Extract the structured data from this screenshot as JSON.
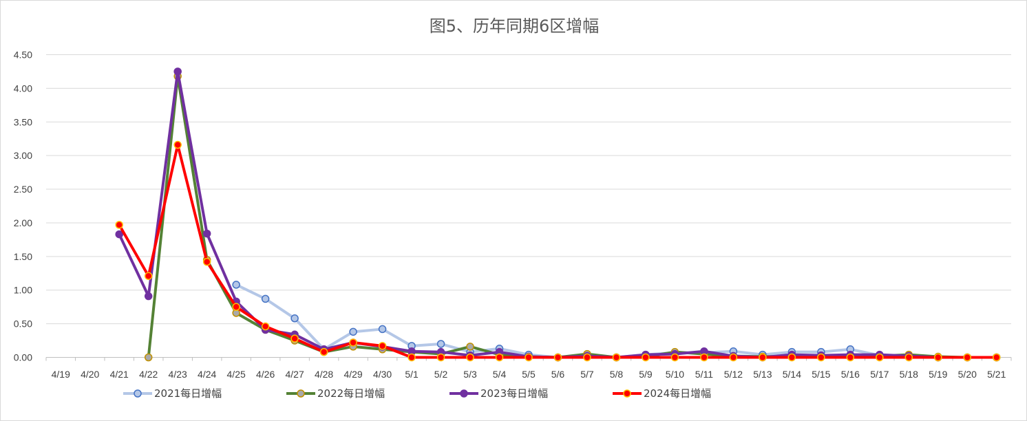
{
  "chart_data": {
    "type": "line",
    "title": "图5、历年同期6区增幅",
    "xlabel": "",
    "ylabel": "",
    "ylim": [
      0,
      4.5
    ],
    "yticks": [
      "0.00",
      "0.50",
      "1.00",
      "1.50",
      "2.00",
      "2.50",
      "3.00",
      "3.50",
      "4.00",
      "4.50"
    ],
    "grid": true,
    "legend_position": "bottom",
    "categories": [
      "4/19",
      "4/20",
      "4/21",
      "4/22",
      "4/23",
      "4/24",
      "4/25",
      "4/26",
      "4/27",
      "4/28",
      "4/29",
      "4/30",
      "5/1",
      "5/2",
      "5/3",
      "5/4",
      "5/5",
      "5/6",
      "5/7",
      "5/8",
      "5/9",
      "5/10",
      "5/11",
      "5/12",
      "5/13",
      "5/14",
      "5/15",
      "5/16",
      "5/17",
      "5/18",
      "5/19",
      "5/20",
      "5/21"
    ],
    "series": [
      {
        "name": "2021每日增幅",
        "color": "#b4c7e7",
        "marker_fill": "#b4c7e7",
        "marker_stroke": "#4472c4",
        "line_width": 4,
        "values": [
          null,
          null,
          null,
          null,
          null,
          null,
          1.08,
          0.87,
          0.58,
          0.12,
          0.38,
          0.42,
          0.17,
          0.2,
          0.08,
          0.13,
          0.04,
          0.0,
          0.04,
          0.0,
          0.04,
          0.07,
          0.07,
          0.09,
          0.04,
          0.08,
          0.08,
          0.12,
          0.03,
          0.02,
          0.0,
          0.0,
          0.0
        ]
      },
      {
        "name": "2022每日增幅",
        "color": "#548235",
        "marker_fill": "#a9a9a9",
        "marker_stroke": "#c09000",
        "line_width": 4,
        "values": [
          null,
          null,
          null,
          0.0,
          4.18,
          1.45,
          0.66,
          0.41,
          0.25,
          0.08,
          0.16,
          0.12,
          0.08,
          0.05,
          0.16,
          0.04,
          0.01,
          0.0,
          0.05,
          0.0,
          0.01,
          0.08,
          0.05,
          0.02,
          0.01,
          0.02,
          0.01,
          0.01,
          0.02,
          0.04,
          0.01,
          0.0,
          0.0
        ]
      },
      {
        "name": "2023每日增幅",
        "color": "#7030a0",
        "marker_fill": "#7030a0",
        "marker_stroke": "#7030a0",
        "line_width": 4,
        "values": [
          null,
          null,
          1.83,
          0.91,
          4.25,
          1.84,
          0.83,
          0.41,
          0.34,
          0.12,
          0.22,
          0.16,
          0.09,
          0.08,
          0.03,
          0.08,
          0.01,
          0.0,
          0.02,
          0.0,
          0.04,
          0.05,
          0.09,
          0.02,
          0.0,
          0.04,
          0.03,
          0.04,
          0.04,
          0.02,
          0.0,
          0.0,
          0.0
        ]
      },
      {
        "name": "2024每日增幅",
        "color": "#ff0000",
        "marker_fill": "#ff0000",
        "marker_stroke": "#ffc000",
        "line_width": 4,
        "values": [
          null,
          null,
          1.97,
          1.21,
          3.16,
          1.42,
          0.75,
          0.46,
          0.28,
          0.08,
          0.22,
          0.17,
          0.0,
          0.0,
          0.0,
          0.0,
          0.0,
          0.0,
          0.0,
          0.0,
          0.0,
          0.0,
          0.0,
          0.0,
          0.0,
          0.0,
          0.0,
          0.0,
          0.0,
          0.0,
          0.0,
          0.0,
          0.0
        ]
      }
    ]
  },
  "colors": {
    "gridline": "#d9d9d9",
    "axis_line": "#bfbfbf",
    "text": "#404040",
    "title": "#595959"
  }
}
